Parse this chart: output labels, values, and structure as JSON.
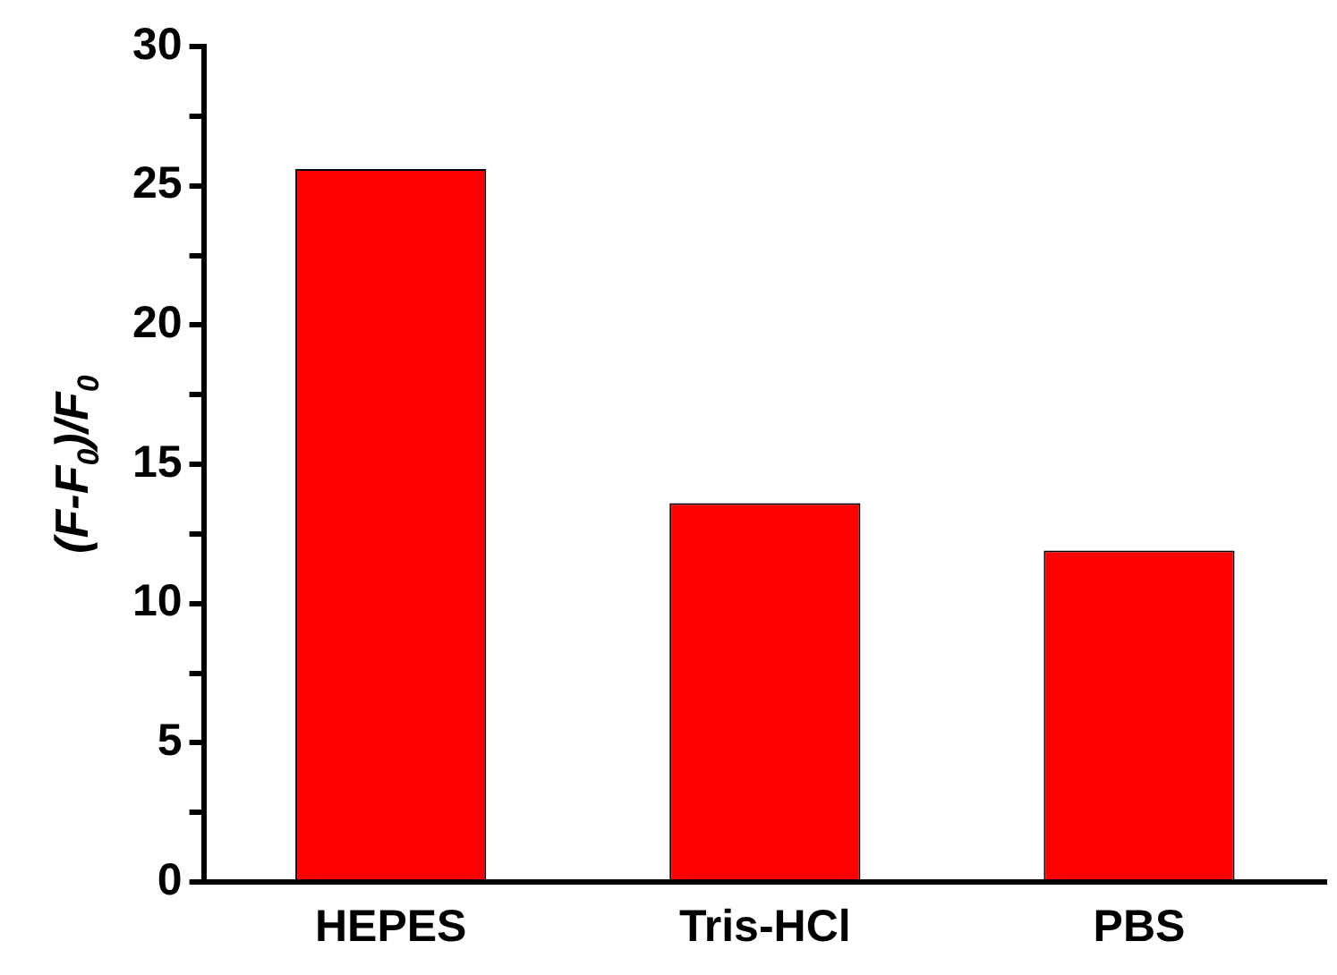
{
  "chart_data": {
    "type": "bar",
    "ylabel": "(F-F$_{0}$)/F$_{0}$",
    "categories": [
      "HEPES",
      "Tris-HCl",
      "PBS"
    ],
    "values": [
      25.6,
      13.6,
      11.9
    ],
    "color": "#ff0000",
    "ylim": [
      0,
      30
    ],
    "yticks": [
      0,
      {
        "value": 2.5,
        "label": null
      },
      5,
      {
        "value": 7.5,
        "label": null
      },
      10,
      {
        "value": 12.5,
        "label": null
      },
      15,
      {
        "value": 17.5,
        "label": null
      },
      20,
      {
        "value": 22.5,
        "label": null
      },
      25,
      {
        "value": 27.5,
        "label": null
      },
      30
    ],
    "grid": false,
    "legend": false
  }
}
